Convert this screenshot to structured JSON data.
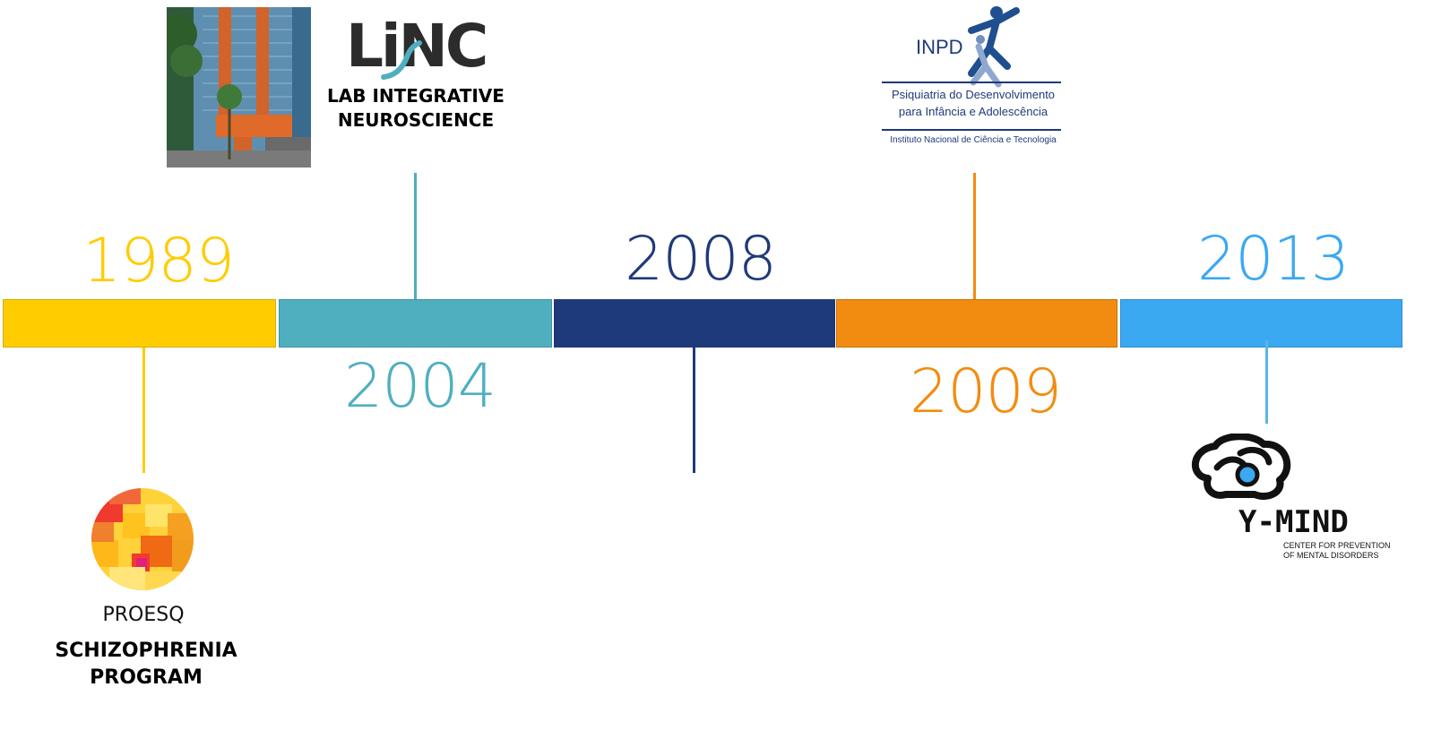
{
  "colors": {
    "y1989": "#FFCC00",
    "y2004": "#4FAFBF",
    "y2008": "#1F3A7A",
    "y2009": "#F28C10",
    "y2013": "#3BA8F2"
  },
  "events": [
    {
      "year": "1989",
      "caption_lines": [
        "SCHIZOPHRENIA",
        "PROGRAM"
      ],
      "logo_text": "PROESQ"
    },
    {
      "year": "2004",
      "caption_lines": [
        "LAB INTEGRATIVE",
        "NEUROSCIENCE"
      ],
      "logo_text": "LiNC"
    },
    {
      "year": "2008"
    },
    {
      "year": "2009",
      "logo_text": "INPD",
      "logo_line1": "Psiquiatria do Desenvolvimento",
      "logo_line2": "para Infância e Adolescência",
      "logo_line3": "Instituto Nacional de Ciência e Tecnologia"
    },
    {
      "year": "2013",
      "logo_text": "Y-MIND",
      "logo_sub1": "CENTER FOR PREVENTION",
      "logo_sub2": "OF MENTAL DISORDERS"
    }
  ]
}
